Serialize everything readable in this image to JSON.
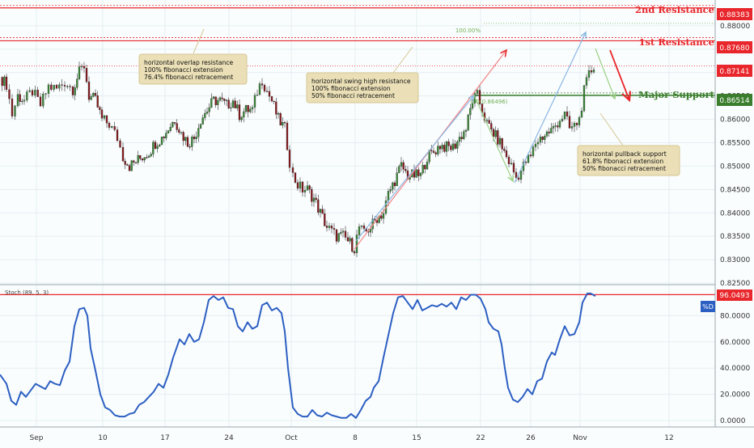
{
  "chart_data": [
    {
      "type": "candlestick",
      "ylim": [
        0.825,
        0.885
      ],
      "y_ticks": [
        "0.88000",
        "0.87500",
        "0.87000",
        "0.86500",
        "0.86000",
        "0.85500",
        "0.85000",
        "0.84500",
        "0.84000",
        "0.83500",
        "0.83000",
        "0.82500"
      ],
      "x_ticks": [
        "Sep",
        "10",
        "17",
        "24",
        "Oct",
        "8",
        "15",
        "22",
        "26",
        "Nov",
        "12"
      ],
      "price_path": [
        [
          0,
          0.869
        ],
        [
          8,
          0.8675
        ],
        [
          15,
          0.861
        ],
        [
          22,
          0.865
        ],
        [
          30,
          0.864
        ],
        [
          40,
          0.866
        ],
        [
          50,
          0.863
        ],
        [
          60,
          0.867
        ],
        [
          70,
          0.8665
        ],
        [
          80,
          0.868
        ],
        [
          90,
          0.8665
        ],
        [
          98,
          0.87
        ],
        [
          104,
          0.8715
        ],
        [
          110,
          0.865
        ],
        [
          118,
          0.864
        ],
        [
          126,
          0.86
        ],
        [
          135,
          0.859
        ],
        [
          145,
          0.856
        ],
        [
          152,
          0.852
        ],
        [
          160,
          0.85
        ],
        [
          168,
          0.851
        ],
        [
          176,
          0.852
        ],
        [
          184,
          0.853
        ],
        [
          192,
          0.855
        ],
        [
          200,
          0.856
        ],
        [
          208,
          0.858
        ],
        [
          216,
          0.86
        ],
        [
          224,
          0.857
        ],
        [
          232,
          0.855
        ],
        [
          240,
          0.856
        ],
        [
          248,
          0.86
        ],
        [
          256,
          0.862
        ],
        [
          264,
          0.864
        ],
        [
          272,
          0.864
        ],
        [
          280,
          0.863
        ],
        [
          288,
          0.864
        ],
        [
          296,
          0.861
        ],
        [
          304,
          0.862
        ],
        [
          312,
          0.862
        ],
        [
          318,
          0.866
        ],
        [
          324,
          0.8685
        ],
        [
          330,
          0.866
        ],
        [
          336,
          0.864
        ],
        [
          344,
          0.86
        ],
        [
          352,
          0.858
        ],
        [
          358,
          0.851
        ],
        [
          362,
          0.848
        ],
        [
          368,
          0.846
        ],
        [
          374,
          0.845
        ],
        [
          380,
          0.845
        ],
        [
          388,
          0.843
        ],
        [
          396,
          0.84
        ],
        [
          404,
          0.837
        ],
        [
          410,
          0.836
        ],
        [
          416,
          0.835
        ],
        [
          424,
          0.835
        ],
        [
          430,
          0.834
        ],
        [
          438,
          0.8325
        ],
        [
          444,
          0.837
        ],
        [
          450,
          0.8355
        ],
        [
          458,
          0.837
        ],
        [
          466,
          0.839
        ],
        [
          474,
          0.84
        ],
        [
          480,
          0.844
        ],
        [
          488,
          0.847
        ],
        [
          496,
          0.85
        ],
        [
          504,
          0.848
        ],
        [
          512,
          0.848
        ],
        [
          520,
          0.848
        ],
        [
          528,
          0.852
        ],
        [
          536,
          0.853
        ],
        [
          544,
          0.8545
        ],
        [
          552,
          0.854
        ],
        [
          560,
          0.854
        ],
        [
          568,
          0.856
        ],
        [
          576,
          0.858
        ],
        [
          584,
          0.864
        ],
        [
          590,
          0.865
        ],
        [
          596,
          0.862
        ],
        [
          602,
          0.859
        ],
        [
          610,
          0.857
        ],
        [
          618,
          0.855
        ],
        [
          626,
          0.852
        ],
        [
          632,
          0.85
        ],
        [
          638,
          0.8475
        ],
        [
          644,
          0.849
        ],
        [
          650,
          0.851
        ],
        [
          656,
          0.852
        ],
        [
          662,
          0.855
        ],
        [
          668,
          0.856
        ],
        [
          676,
          0.857
        ],
        [
          684,
          0.858
        ],
        [
          692,
          0.86
        ],
        [
          698,
          0.861
        ],
        [
          704,
          0.858
        ],
        [
          710,
          0.8585
        ],
        [
          716,
          0.86
        ],
        [
          722,
          0.866
        ],
        [
          728,
          0.8695
        ],
        [
          734,
          0.8714
        ]
      ],
      "levels": [
        {
          "name": "2nd Resistance",
          "value": 0.88383,
          "color": "#e8262b"
        },
        {
          "name": "1st Resistance",
          "value": 0.8768,
          "color": "#e8262b"
        },
        {
          "name": "Major Support",
          "value": 0.86514,
          "color": "#3a7d2c"
        }
      ],
      "last_price": {
        "value": 0.87141,
        "label": "0.87141",
        "color": "#e8262b"
      },
      "fib_labels": {
        "top": "100.00%",
        "mid": "0.0(0.86496)"
      },
      "annotations": [
        {
          "lines": [
            "horizontal overlap resistance",
            "100% fibonacci extension",
            "76.4% fibonacci retracement"
          ]
        },
        {
          "lines": [
            "horizontal swing high resistance",
            "100% fibonacci extension",
            "50% fibonacci retracement"
          ]
        },
        {
          "lines": [
            "horizontal pullback support",
            "61.8% fibonacci extension",
            "50% fibonacci retracement"
          ]
        }
      ]
    },
    {
      "type": "line",
      "title": "Stoch (89, 5, 3)",
      "ylim": [
        0,
        100
      ],
      "y_ticks": [
        "80.0000",
        "60.0000",
        "40.0000",
        "20.0000",
        "0.0000"
      ],
      "level": {
        "value": 96.0493,
        "label": "96.0493"
      },
      "series": [
        {
          "name": "%D",
          "color": "#2c5fc2",
          "points": [
            [
              0,
              35
            ],
            [
              8,
              28
            ],
            [
              14,
              15
            ],
            [
              20,
              12
            ],
            [
              26,
              22
            ],
            [
              32,
              18
            ],
            [
              38,
              23
            ],
            [
              44,
              28
            ],
            [
              50,
              26
            ],
            [
              56,
              24
            ],
            [
              62,
              30
            ],
            [
              68,
              28
            ],
            [
              74,
              27
            ],
            [
              80,
              38
            ],
            [
              86,
              45
            ],
            [
              92,
              72
            ],
            [
              98,
              85
            ],
            [
              104,
              86
            ],
            [
              108,
              80
            ],
            [
              112,
              55
            ],
            [
              118,
              38
            ],
            [
              124,
              20
            ],
            [
              130,
              10
            ],
            [
              136,
              8
            ],
            [
              142,
              4
            ],
            [
              148,
              3
            ],
            [
              154,
              3
            ],
            [
              160,
              5
            ],
            [
              166,
              6
            ],
            [
              172,
              12
            ],
            [
              178,
              14
            ],
            [
              184,
              18
            ],
            [
              190,
              22
            ],
            [
              196,
              28
            ],
            [
              202,
              25
            ],
            [
              208,
              35
            ],
            [
              214,
              48
            ],
            [
              218,
              55
            ],
            [
              222,
              62
            ],
            [
              228,
              58
            ],
            [
              234,
              66
            ],
            [
              240,
              60
            ],
            [
              246,
              62
            ],
            [
              252,
              75
            ],
            [
              258,
              92
            ],
            [
              264,
              95
            ],
            [
              270,
              92
            ],
            [
              276,
              94
            ],
            [
              282,
              86
            ],
            [
              288,
              85
            ],
            [
              294,
              72
            ],
            [
              300,
              68
            ],
            [
              306,
              75
            ],
            [
              312,
              70
            ],
            [
              318,
              72
            ],
            [
              324,
              88
            ],
            [
              330,
              90
            ],
            [
              336,
              84
            ],
            [
              342,
              86
            ],
            [
              348,
              82
            ],
            [
              352,
              68
            ],
            [
              356,
              40
            ],
            [
              362,
              10
            ],
            [
              368,
              5
            ],
            [
              374,
              3
            ],
            [
              380,
              3
            ],
            [
              386,
              8
            ],
            [
              392,
              4
            ],
            [
              398,
              3
            ],
            [
              404,
              6
            ],
            [
              410,
              4
            ],
            [
              416,
              3
            ],
            [
              422,
              2
            ],
            [
              428,
              2
            ],
            [
              434,
              5
            ],
            [
              440,
              2
            ],
            [
              446,
              8
            ],
            [
              452,
              15
            ],
            [
              458,
              18
            ],
            [
              462,
              25
            ],
            [
              468,
              30
            ],
            [
              474,
              48
            ],
            [
              480,
              65
            ],
            [
              486,
              82
            ],
            [
              492,
              94
            ],
            [
              498,
              95
            ],
            [
              504,
              90
            ],
            [
              510,
              85
            ],
            [
              516,
              92
            ],
            [
              522,
              84
            ],
            [
              528,
              86
            ],
            [
              534,
              88
            ],
            [
              540,
              87
            ],
            [
              546,
              89
            ],
            [
              552,
              87
            ],
            [
              558,
              90
            ],
            [
              564,
              85
            ],
            [
              570,
              94
            ],
            [
              576,
              92
            ],
            [
              582,
              96
            ],
            [
              588,
              96
            ],
            [
              594,
              93
            ],
            [
              600,
              85
            ],
            [
              604,
              75
            ],
            [
              610,
              70
            ],
            [
              616,
              68
            ],
            [
              620,
              58
            ],
            [
              624,
              40
            ],
            [
              628,
              25
            ],
            [
              634,
              16
            ],
            [
              640,
              14
            ],
            [
              646,
              18
            ],
            [
              652,
              24
            ],
            [
              658,
              20
            ],
            [
              664,
              30
            ],
            [
              670,
              32
            ],
            [
              676,
              45
            ],
            [
              682,
              52
            ],
            [
              686,
              50
            ],
            [
              692,
              62
            ],
            [
              698,
              72
            ],
            [
              704,
              65
            ],
            [
              710,
              66
            ],
            [
              716,
              75
            ],
            [
              720,
              90
            ],
            [
              726,
              97
            ],
            [
              730,
              97
            ],
            [
              736,
              95
            ]
          ]
        }
      ]
    }
  ]
}
